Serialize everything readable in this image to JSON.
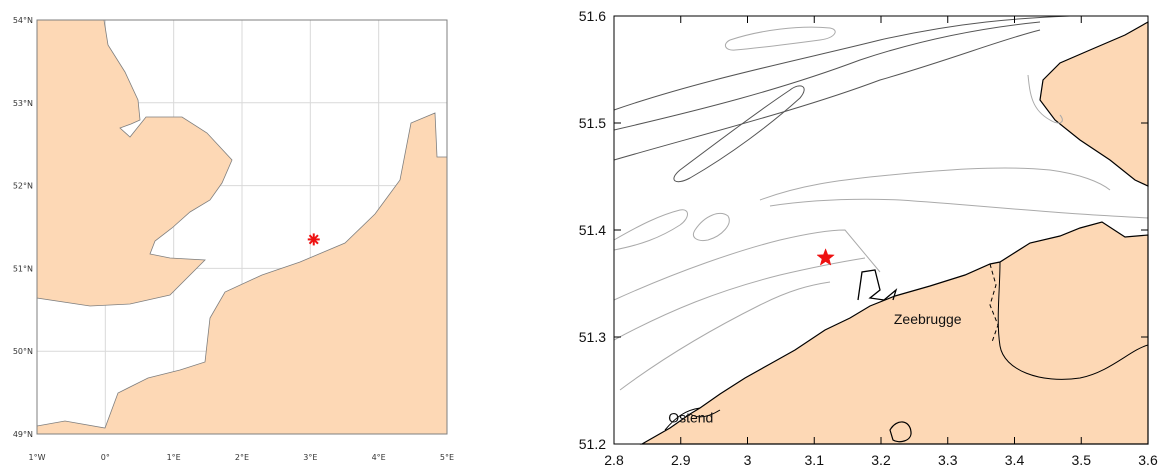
{
  "colors": {
    "land": "#fdd8b5",
    "coast_left": "#7f7f7f",
    "grid": "#d9d9d9",
    "coast_right": "#000000",
    "depth_contour_dark": "#555555",
    "depth_contour_light": "#aaaaaa",
    "marker": "#ee1111"
  },
  "left_map": {
    "lon_range": [
      -1,
      5
    ],
    "lat_range": [
      49,
      54
    ],
    "lon_labels": [
      {
        "lon": -1,
        "text": "1°W"
      },
      {
        "lon": 0,
        "text": "0°"
      },
      {
        "lon": 1,
        "text": "1°E"
      },
      {
        "lon": 2,
        "text": "2°E"
      },
      {
        "lon": 3,
        "text": "3°E"
      },
      {
        "lon": 4,
        "text": "4°E"
      },
      {
        "lon": 5,
        "text": "5°E"
      }
    ],
    "lat_labels": [
      {
        "lat": 49,
        "text": "49°N"
      },
      {
        "lat": 50,
        "text": "50°N"
      },
      {
        "lat": 51,
        "text": "51°N"
      },
      {
        "lat": 52,
        "text": "52°N"
      },
      {
        "lat": 53,
        "text": "53°N"
      },
      {
        "lat": 54,
        "text": "54°N"
      }
    ],
    "marker": {
      "symbol": "asterisk",
      "lon": 3.05,
      "lat": 51.35
    },
    "grid": true
  },
  "right_map": {
    "lon_range": [
      2.8,
      3.6
    ],
    "lat_range": [
      51.2,
      51.6
    ],
    "x_ticks": [
      "2.8",
      "2.9",
      "3",
      "3.1",
      "3.2",
      "3.3",
      "3.4",
      "3.5",
      "3.6"
    ],
    "y_ticks": [
      "51.2",
      "51.3",
      "51.4",
      "51.5",
      "51.6"
    ],
    "marker": {
      "symbol": "star",
      "lon": 3.117,
      "lat": 51.374
    },
    "places": [
      {
        "name": "Zeebrugge",
        "lon": 3.27,
        "lat": 51.312
      },
      {
        "name": "Ostend",
        "lon": 2.915,
        "lat": 51.22
      }
    ]
  }
}
